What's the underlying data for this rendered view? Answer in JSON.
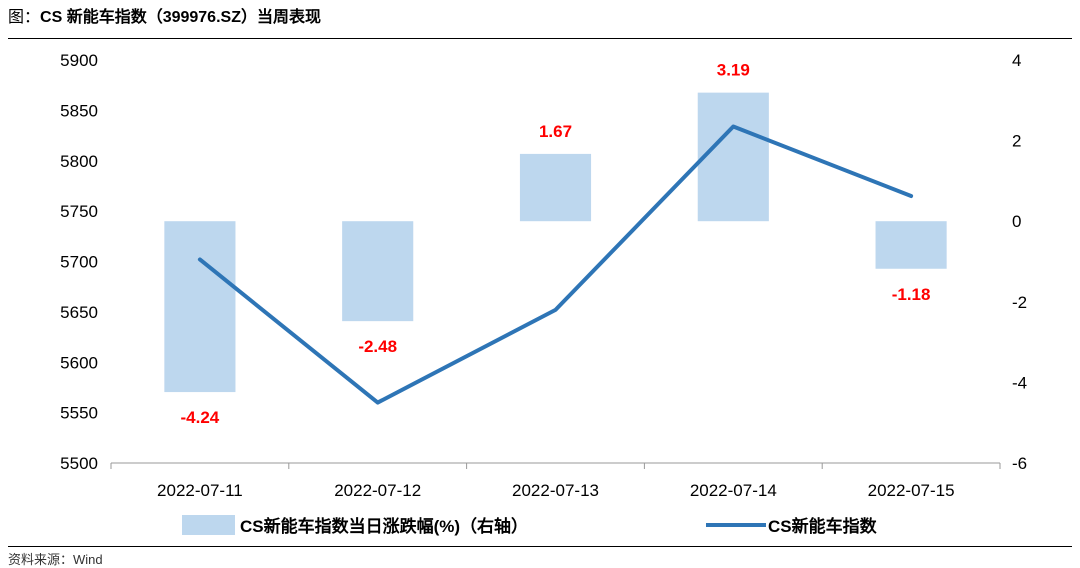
{
  "header": {
    "prefix": "图：",
    "title": "CS 新能车指数（399976.SZ）当周表现"
  },
  "footer": {
    "source": "资料来源：Wind"
  },
  "colors": {
    "bar": "#bdd7ee",
    "line": "#2e75b6",
    "data_label": "#ff0000",
    "axis": "#999999"
  },
  "chart_data": {
    "type": "bar+line",
    "title": "",
    "categories": [
      "2022-07-11",
      "2022-07-12",
      "2022-07-13",
      "2022-07-14",
      "2022-07-15"
    ],
    "series": [
      {
        "name": "CS新能车指数当日涨跌幅(%)（右轴）",
        "type": "bar",
        "axis": "right",
        "values": [
          -4.24,
          -2.48,
          1.67,
          3.19,
          -1.18
        ],
        "labels": [
          "-4.24",
          "-2.48",
          "1.67",
          "3.19",
          "-1.18"
        ]
      },
      {
        "name": "CS新能车指数",
        "type": "line",
        "axis": "left",
        "values": [
          5702,
          5560,
          5652,
          5834,
          5765
        ]
      }
    ],
    "left_axis": {
      "min": 5500,
      "max": 5900,
      "ticks": [
        "5900",
        "5850",
        "5800",
        "5750",
        "5700",
        "5650",
        "5600",
        "5550",
        "5500"
      ]
    },
    "right_axis": {
      "min": -6,
      "max": 4,
      "ticks": [
        "4",
        "2",
        "0",
        "-2",
        "-4",
        "-6"
      ]
    },
    "legend_position": "bottom",
    "grid": false
  }
}
